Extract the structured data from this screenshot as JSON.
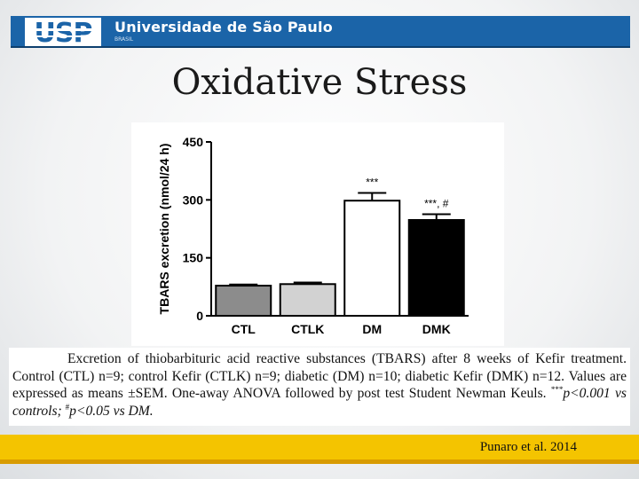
{
  "header": {
    "logo_text": "USP",
    "university_name": "Universidade de São Paulo",
    "country": "BRASIL"
  },
  "slide": {
    "title": "Oxidative Stress",
    "citation": "Punaro et al. 2014"
  },
  "colors": {
    "header_blue": "#1b64a8",
    "footer_gold": "#f4c400",
    "bar_ctl": "#8c8c8c",
    "bar_ctlk": "#d2d2d2",
    "bar_dm": "#ffffff",
    "bar_dmk": "#000000"
  },
  "chart_data": {
    "type": "bar",
    "title": "",
    "xlabel": "",
    "ylabel": "TBARS excretion (nmol/24 h)",
    "categories": [
      "CTL",
      "CTLK",
      "DM",
      "DMK"
    ],
    "values": [
      78,
      82,
      298,
      248
    ],
    "errors": [
      3,
      4,
      20,
      15
    ],
    "bar_colors": [
      "#8c8c8c",
      "#d2d2d2",
      "#ffffff",
      "#000000"
    ],
    "annotations": [
      "",
      "",
      "***",
      "***, #"
    ],
    "ylim": [
      0,
      450
    ],
    "yticks": [
      0,
      150,
      300,
      450
    ],
    "grid": false
  },
  "caption": {
    "line1_a": "Excretion of thiobarbituric acid reactive substances (TBARS) after 8 weeks of Kefir treatment. Control (CTL) n=9; control Kefir (CTLK) n=9; diabetic (DM) n=10; diabetic Kefir (DMK) n=12. Values are expressed as means ±SEM. One-away ANOVA followed by post test Student Newman Keuls.",
    "sup1": "***",
    "p1": "p<0.001 vs controls;",
    "sup2": "#",
    "p2": "p<0.05 vs DM."
  }
}
